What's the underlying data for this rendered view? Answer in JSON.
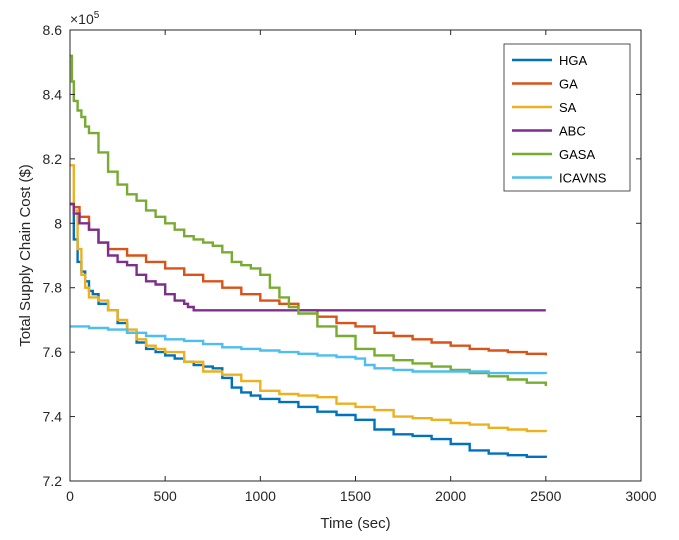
{
  "chart_data": {
    "type": "line",
    "title": "",
    "xlabel": "Time (sec)",
    "ylabel": "Total Supply Chain Cost ($)",
    "xlim": [
      0,
      3000
    ],
    "ylim": [
      7.2,
      8.6
    ],
    "y_exponent_label": "×10",
    "y_exponent_power": "5",
    "xticks": [
      0,
      500,
      1000,
      1500,
      2000,
      2500,
      3000
    ],
    "yticks": [
      7.2,
      7.4,
      7.6,
      7.8,
      8.0,
      8.2,
      8.4,
      8.6
    ],
    "xtick_labels": [
      "0",
      "500",
      "1000",
      "1500",
      "2000",
      "2500",
      "3000"
    ],
    "ytick_labels": [
      "7.2",
      "7.4",
      "7.6",
      "7.8",
      "8",
      "8.2",
      "8.4",
      "8.6"
    ],
    "grid": false,
    "legend_position": "top-right",
    "series": [
      {
        "name": "HGA",
        "color": "#0072BD",
        "x": [
          0,
          20,
          40,
          60,
          80,
          100,
          120,
          150,
          200,
          250,
          300,
          350,
          400,
          450,
          500,
          550,
          600,
          650,
          700,
          750,
          800,
          850,
          900,
          950,
          1000,
          1100,
          1200,
          1300,
          1400,
          1500,
          1600,
          1700,
          1800,
          1900,
          2000,
          2100,
          2200,
          2300,
          2400,
          2500
        ],
        "y": [
          8.06,
          7.95,
          7.88,
          7.85,
          7.82,
          7.79,
          7.78,
          7.75,
          7.73,
          7.69,
          7.66,
          7.63,
          7.61,
          7.6,
          7.59,
          7.58,
          7.57,
          7.56,
          7.555,
          7.55,
          7.52,
          7.49,
          7.475,
          7.465,
          7.455,
          7.445,
          7.43,
          7.415,
          7.405,
          7.39,
          7.36,
          7.345,
          7.34,
          7.33,
          7.315,
          7.295,
          7.285,
          7.28,
          7.275,
          7.272
        ]
      },
      {
        "name": "GA",
        "color": "#D95319",
        "x": [
          0,
          20,
          50,
          100,
          150,
          200,
          300,
          400,
          500,
          600,
          700,
          800,
          900,
          1000,
          1100,
          1200,
          1300,
          1400,
          1500,
          1600,
          1700,
          1800,
          1900,
          2000,
          2100,
          2200,
          2300,
          2400,
          2500
        ],
        "y": [
          8.06,
          8.05,
          8.02,
          7.98,
          7.94,
          7.92,
          7.9,
          7.88,
          7.86,
          7.84,
          7.82,
          7.8,
          7.78,
          7.76,
          7.75,
          7.73,
          7.71,
          7.69,
          7.68,
          7.66,
          7.65,
          7.64,
          7.63,
          7.62,
          7.61,
          7.605,
          7.6,
          7.595,
          7.59
        ]
      },
      {
        "name": "SA",
        "color": "#EDB120",
        "x": [
          0,
          20,
          40,
          60,
          80,
          100,
          150,
          200,
          250,
          300,
          350,
          400,
          450,
          500,
          600,
          700,
          800,
          900,
          1000,
          1100,
          1200,
          1300,
          1400,
          1500,
          1600,
          1700,
          1800,
          1900,
          2000,
          2100,
          2200,
          2300,
          2400,
          2500
        ],
        "y": [
          8.18,
          8.04,
          7.92,
          7.84,
          7.8,
          7.77,
          7.76,
          7.73,
          7.7,
          7.67,
          7.64,
          7.62,
          7.61,
          7.6,
          7.57,
          7.54,
          7.53,
          7.51,
          7.48,
          7.47,
          7.465,
          7.46,
          7.44,
          7.43,
          7.42,
          7.4,
          7.395,
          7.39,
          7.38,
          7.375,
          7.365,
          7.36,
          7.355,
          7.353
        ]
      },
      {
        "name": "ABC",
        "color": "#7E2F8E",
        "x": [
          0,
          20,
          50,
          100,
          150,
          200,
          250,
          300,
          350,
          400,
          450,
          500,
          550,
          600,
          620,
          650,
          700,
          800,
          900,
          1000,
          1500,
          2000,
          2500
        ],
        "y": [
          8.06,
          8.03,
          8.0,
          7.98,
          7.94,
          7.9,
          7.88,
          7.87,
          7.84,
          7.82,
          7.81,
          7.78,
          7.76,
          7.75,
          7.74,
          7.73,
          7.73,
          7.73,
          7.73,
          7.73,
          7.73,
          7.73,
          7.73
        ]
      },
      {
        "name": "GASA",
        "color": "#77AC30",
        "x": [
          0,
          10,
          20,
          40,
          60,
          80,
          100,
          150,
          200,
          250,
          300,
          350,
          400,
          450,
          500,
          550,
          600,
          650,
          700,
          750,
          800,
          850,
          900,
          950,
          1000,
          1050,
          1100,
          1150,
          1200,
          1300,
          1400,
          1500,
          1600,
          1700,
          1800,
          1900,
          2000,
          2100,
          2200,
          2300,
          2400,
          2500
        ],
        "y": [
          8.52,
          8.44,
          8.38,
          8.35,
          8.33,
          8.3,
          8.28,
          8.22,
          8.16,
          8.12,
          8.09,
          8.07,
          8.04,
          8.02,
          8.0,
          7.98,
          7.96,
          7.95,
          7.94,
          7.93,
          7.91,
          7.88,
          7.87,
          7.86,
          7.84,
          7.8,
          7.77,
          7.74,
          7.72,
          7.68,
          7.65,
          7.61,
          7.59,
          7.575,
          7.565,
          7.555,
          7.545,
          7.535,
          7.525,
          7.515,
          7.505,
          7.495
        ]
      },
      {
        "name": "ICAVNS",
        "color": "#4DBEEE",
        "x": [
          0,
          50,
          100,
          200,
          300,
          400,
          500,
          600,
          700,
          800,
          900,
          1000,
          1100,
          1200,
          1300,
          1400,
          1500,
          1550,
          1600,
          1700,
          1800,
          1900,
          2000,
          2100,
          2200,
          2300,
          2400,
          2500
        ],
        "y": [
          7.68,
          7.68,
          7.675,
          7.67,
          7.66,
          7.65,
          7.64,
          7.635,
          7.625,
          7.615,
          7.61,
          7.605,
          7.6,
          7.595,
          7.59,
          7.585,
          7.58,
          7.56,
          7.55,
          7.545,
          7.54,
          7.54,
          7.54,
          7.54,
          7.535,
          7.535,
          7.535,
          7.533
        ]
      }
    ]
  }
}
